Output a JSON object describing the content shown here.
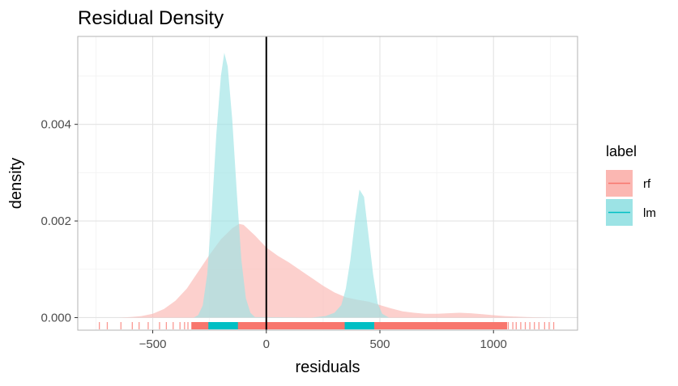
{
  "chart_data": {
    "type": "area",
    "title": "Residual Density",
    "xlabel": "residuals",
    "ylabel": "density",
    "xlim": [
      -830,
      1370
    ],
    "ylim": [
      -0.00026,
      0.00582
    ],
    "x_ticks": [
      -500,
      0,
      500,
      1000
    ],
    "x_tick_labels": [
      "−500",
      "0",
      "500",
      "1000"
    ],
    "y_ticks": [
      0,
      0.002,
      0.004
    ],
    "y_tick_labels": [
      "0.000",
      "0.002",
      "0.004"
    ],
    "vline_x": 0,
    "grid": true,
    "legend": {
      "title": "label",
      "position": "right"
    },
    "series": [
      {
        "name": "rf",
        "color": "#F8766D",
        "fill": "#FBB7B2",
        "points": [
          [
            -650,
            0
          ],
          [
            -600,
            1e-05
          ],
          [
            -550,
            3e-05
          ],
          [
            -500,
            8e-05
          ],
          [
            -450,
            0.00018
          ],
          [
            -400,
            0.00035
          ],
          [
            -350,
            0.0006
          ],
          [
            -300,
            0.00095
          ],
          [
            -250,
            0.0013
          ],
          [
            -200,
            0.00162
          ],
          [
            -150,
            0.00185
          ],
          [
            -120,
            0.00194
          ],
          [
            -100,
            0.00192
          ],
          [
            -50,
            0.0017
          ],
          [
            0,
            0.00145
          ],
          [
            50,
            0.00128
          ],
          [
            100,
            0.00114
          ],
          [
            150,
            0.00098
          ],
          [
            200,
            0.00082
          ],
          [
            250,
            0.00066
          ],
          [
            300,
            0.00052
          ],
          [
            350,
            0.00042
          ],
          [
            400,
            0.00037
          ],
          [
            450,
            0.00033
          ],
          [
            500,
            0.00026
          ],
          [
            550,
            0.00019
          ],
          [
            600,
            0.00013
          ],
          [
            650,
            0.0001
          ],
          [
            700,
            8e-05
          ],
          [
            750,
            8e-05
          ],
          [
            800,
            9e-05
          ],
          [
            850,
            0.0001
          ],
          [
            900,
            9e-05
          ],
          [
            950,
            7e-05
          ],
          [
            1000,
            5e-05
          ],
          [
            1050,
            3e-05
          ],
          [
            1100,
            2e-05
          ],
          [
            1150,
            1e-05
          ],
          [
            1250,
            0
          ]
        ],
        "rug": {
          "min": -735,
          "max": 1265
        }
      },
      {
        "name": "lm",
        "color": "#00BFC4",
        "fill": "#9CE3E5",
        "points": [
          [
            -320,
            0
          ],
          [
            -300,
            5e-05
          ],
          [
            -280,
            0.00025
          ],
          [
            -260,
            0.0009
          ],
          [
            -240,
            0.0022
          ],
          [
            -220,
            0.0038
          ],
          [
            -200,
            0.005
          ],
          [
            -185,
            0.00548
          ],
          [
            -170,
            0.0052
          ],
          [
            -150,
            0.0041
          ],
          [
            -130,
            0.0026
          ],
          [
            -110,
            0.0012
          ],
          [
            -90,
            0.0004
          ],
          [
            -70,
            0.0001
          ],
          [
            -50,
            1e-05
          ],
          [
            200,
            0
          ],
          [
            260,
            3e-05
          ],
          [
            300,
            0.0001
          ],
          [
            330,
            0.00026
          ],
          [
            350,
            0.0006
          ],
          [
            370,
            0.0012
          ],
          [
            390,
            0.002
          ],
          [
            410,
            0.00265
          ],
          [
            430,
            0.0025
          ],
          [
            450,
            0.0017
          ],
          [
            470,
            0.0009
          ],
          [
            490,
            0.0003
          ],
          [
            510,
            8e-05
          ],
          [
            540,
            0
          ]
        ],
        "rug": {
          "ranges": [
            [
              -255,
              -125
            ],
            [
              345,
              475
            ]
          ]
        }
      }
    ]
  }
}
